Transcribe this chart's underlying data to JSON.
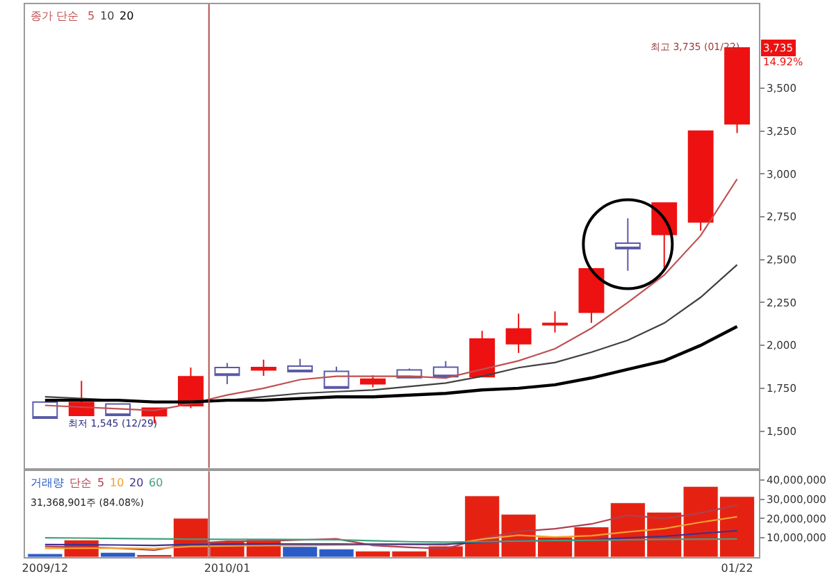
{
  "chart_data": [
    {
      "type": "candlestick",
      "legend_title": "종가 단순",
      "legend": "top left",
      "tick_labels": "y",
      "categories": [
        "2009/12",
        null,
        null,
        null,
        null,
        "2010/01",
        null,
        null,
        null,
        null,
        null,
        null,
        null,
        null,
        null,
        null,
        null,
        null,
        null,
        "01/22"
      ],
      "ohlc": [
        [
          1669,
          1669,
          1575,
          1575
        ],
        [
          1591,
          1793,
          1591,
          1666
        ],
        [
          1658,
          1658,
          1591,
          1591
        ],
        [
          1589,
          1634,
          1545,
          1634
        ],
        [
          1648,
          1871,
          1634,
          1817
        ],
        [
          1871,
          1897,
          1774,
          1825
        ],
        [
          1857,
          1916,
          1822,
          1871
        ],
        [
          1879,
          1922,
          1847,
          1847
        ],
        [
          1849,
          1876,
          1750,
          1750
        ],
        [
          1776,
          1825,
          1755,
          1803
        ],
        [
          1857,
          1865,
          1811,
          1811
        ],
        [
          1873,
          1908,
          1817,
          1817
        ],
        [
          1817,
          2085,
          1817,
          2037
        ],
        [
          2010,
          2185,
          1956,
          2096
        ],
        [
          2120,
          2198,
          2075,
          2128
        ],
        [
          2193,
          2446,
          2131,
          2446
        ],
        [
          2596,
          2741,
          2435,
          2564
        ],
        [
          2647,
          2830,
          2440,
          2830
        ],
        [
          2720,
          3250,
          2669,
          3250
        ],
        [
          3292,
          3735,
          3238,
          3735
        ]
      ],
      "colors": [
        "#5a5aa8",
        "#ee1111",
        "#5a5aa8",
        "#ee1111",
        "#ee1111",
        "#5a5aa8",
        "#ee1111",
        "#5a5aa8",
        "#5a5aa8",
        "#ee1111",
        "#5a5aa8",
        "#5a5aa8",
        "#ee1111",
        "#ee1111",
        "#ee1111",
        "#ee1111",
        "#5a5aa8",
        "#ee1111",
        "#ee1111",
        "#ee1111"
      ],
      "series": [
        {
          "type": "line",
          "name": "5",
          "color": "#c05050",
          "values": [
            1650,
            1640,
            1630,
            1620,
            1660,
            1710,
            1750,
            1800,
            1820,
            1820,
            1820,
            1810,
            1860,
            1910,
            1980,
            2100,
            2250,
            2410,
            2640,
            2970
          ]
        },
        {
          "type": "line",
          "name": "10",
          "color": "#404040",
          "values": [
            1700,
            1690,
            1680,
            1670,
            1670,
            1680,
            1700,
            1720,
            1730,
            1740,
            1760,
            1780,
            1820,
            1870,
            1900,
            1960,
            2030,
            2130,
            2280,
            2470
          ]
        },
        {
          "type": "line",
          "name": "20",
          "color": "#000000",
          "values": [
            1680,
            1680,
            1680,
            1670,
            1670,
            1680,
            1680,
            1690,
            1700,
            1700,
            1710,
            1720,
            1740,
            1750,
            1770,
            1810,
            1860,
            1910,
            2000,
            2110
          ]
        },
        {
          "type": "scatter",
          "marker": "circle",
          "color": "#000000",
          "values": [
            null,
            null,
            null,
            null,
            null,
            null,
            null,
            null,
            null,
            null,
            null,
            null,
            null,
            null,
            null,
            null,
            2590,
            null,
            null,
            null
          ]
        }
      ],
      "ylim": [
        1285,
        3990
      ],
      "yticks": [
        {
          "value": 1500,
          "label": "1,500"
        },
        {
          "value": 1750,
          "label": "1,750"
        },
        {
          "value": 2000,
          "label": "2,000"
        },
        {
          "value": 2250,
          "label": "2,250"
        },
        {
          "value": 2500,
          "label": "2,500"
        },
        {
          "value": 2750,
          "label": "2,750"
        },
        {
          "value": 3000,
          "label": "3,000"
        },
        {
          "value": 3250,
          "label": "3,250"
        },
        {
          "value": 3500,
          "label": "3,500"
        }
      ],
      "ref_lines": [
        {
          "axis": "x",
          "value": "2010/01",
          "color": "#b05050"
        }
      ],
      "annotations": [
        "3,735",
        "14.92%",
        "최저 1,545 (12/29)",
        {
          "text": "최고 3,735 (01/22)",
          "x": "01/22",
          "y": 3735
        }
      ]
    },
    {
      "type": "bar",
      "legend_title": "단순",
      "legend": "top left",
      "categories": [
        "2009/12",
        null,
        null,
        null,
        null,
        "2010/01",
        null,
        null,
        null,
        null,
        null,
        null,
        null,
        null,
        null,
        null,
        null,
        null,
        null,
        "01/22"
      ],
      "series": [
        {
          "name": "거래량",
          "colors": [
            "#2a5cc8",
            "#e52212",
            "#2a5cc8",
            "#e52212",
            "#e52212",
            "#e52212",
            "#e52212",
            "#2a5cc8",
            "#2a5cc8",
            "#e52212",
            "#e52212",
            "#e52212",
            "#e52212",
            "#e52212",
            "#e52212",
            "#e52212",
            "#e52212",
            "#e52212",
            "#e52212",
            "#e52212"
          ],
          "values": [
            1800000,
            8900000,
            2500000,
            1300000,
            20200000,
            8200000,
            9100000,
            5500000,
            4300000,
            3200000,
            3200000,
            5800000,
            31800000,
            22300000,
            10500000,
            15700000,
            28200000,
            23300000,
            36700000,
            31400000
          ]
        },
        {
          "type": "line",
          "name": "5",
          "color": "#b0404f",
          "values": [
            5500000,
            5200000,
            4600000,
            3600000,
            6900000,
            8200000,
            8300000,
            8900000,
            9500000,
            6100000,
            5100000,
            4400000,
            9700000,
            13300000,
            14700000,
            17200000,
            21700000,
            20000000,
            22900000,
            27000000
          ]
        },
        {
          "type": "line",
          "name": "10",
          "color": "#f0a030",
          "values": [
            4500000,
            4600000,
            4600000,
            4500000,
            5500000,
            5800000,
            6000000,
            6100000,
            6200000,
            6500000,
            6600000,
            6300000,
            9300000,
            11400000,
            10400000,
            11100000,
            13100000,
            14800000,
            18100000,
            20900000
          ]
        },
        {
          "type": "line",
          "name": "20",
          "color": "#403090",
          "values": [
            6500000,
            6400000,
            6300000,
            6100000,
            6600000,
            6700000,
            6800000,
            6800000,
            6800000,
            6700000,
            6700000,
            6700000,
            7800000,
            8400000,
            8600000,
            9000000,
            10000000,
            10800000,
            12300000,
            13700000
          ]
        },
        {
          "type": "line",
          "name": "60",
          "color": "#40a080",
          "values": [
            10000000,
            9900000,
            9700000,
            9500000,
            9300000,
            9200000,
            9200000,
            9100000,
            9000000,
            8500000,
            8000000,
            7800000,
            8000000,
            8300000,
            8600000,
            8800000,
            9000000,
            9200000,
            9300000,
            9400000
          ]
        }
      ],
      "ylim": [
        0,
        44500000
      ],
      "yticks": [
        {
          "value": 10000000,
          "label": "10,000,000"
        },
        {
          "value": 20000000,
          "label": "20,000,000"
        },
        {
          "value": 30000000,
          "label": "30,000,000"
        },
        {
          "value": 40000000,
          "label": "40,000,000"
        }
      ],
      "ref_lines": [
        {
          "axis": "x",
          "value": "2010/01",
          "color": "#b05050"
        }
      ],
      "annotations": [
        "31,368,901주 (84.08%)"
      ]
    }
  ]
}
